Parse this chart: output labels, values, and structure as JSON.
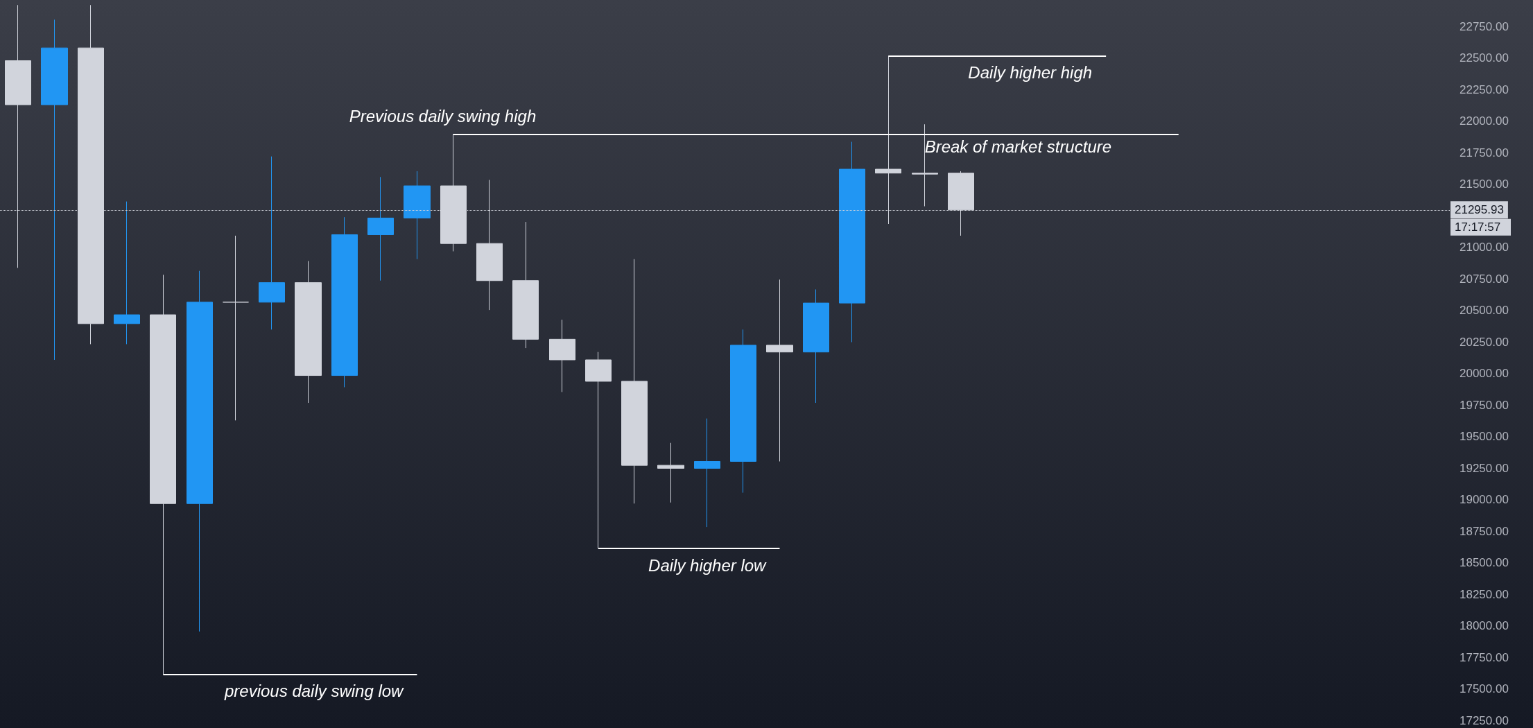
{
  "chart_data": {
    "type": "candlestick",
    "categories": [
      null,
      null,
      null,
      null,
      null,
      null,
      null,
      null,
      null,
      null,
      null,
      null,
      null,
      null,
      null,
      null,
      null,
      null,
      null,
      null,
      null,
      null,
      null,
      null,
      null,
      null,
      null,
      null,
      null,
      null,
      null,
      null,
      null,
      null,
      null,
      null,
      null,
      null,
      null,
      null
    ],
    "ohlc": [
      [
        22479,
        22920,
        20837,
        22130
      ],
      [
        22130,
        22804,
        20108,
        22580
      ],
      [
        22580,
        22920,
        20232,
        20395
      ],
      [
        20395,
        21363,
        20232,
        20465
      ],
      [
        20465,
        20782,
        17614,
        18969
      ],
      [
        18969,
        20813,
        17955,
        20565
      ],
      [
        20565,
        21092,
        19628,
        20565
      ],
      [
        20565,
        21720,
        20348,
        20720
      ],
      [
        20720,
        20891,
        19767,
        19984
      ],
      [
        19984,
        21239,
        19891,
        21100
      ],
      [
        21100,
        21557,
        20736,
        21232
      ],
      [
        21232,
        21603,
        20906,
        21487
      ],
      [
        21487,
        21898,
        20968,
        21030
      ],
      [
        21030,
        21534,
        20503,
        20736
      ],
      [
        20736,
        21201,
        20201,
        20271
      ],
      [
        20271,
        20426,
        19853,
        20108
      ],
      [
        20108,
        20170,
        18613,
        19938
      ],
      [
        19938,
        20906,
        18969,
        19272
      ],
      [
        19272,
        19450,
        18977,
        19248
      ],
      [
        19248,
        19643,
        18783,
        19303
      ],
      [
        19303,
        20348,
        19055,
        20224
      ],
      [
        20224,
        20744,
        19303,
        20170
      ],
      [
        20170,
        20666,
        19767,
        20558
      ],
      [
        20558,
        21836,
        20248,
        21619
      ],
      [
        21619,
        22518,
        21185,
        21588
      ],
      [
        21588,
        21975,
        21325,
        21580
      ],
      [
        21588,
        21603,
        21092,
        21295.93
      ],
      null,
      null,
      null,
      null,
      null,
      null,
      null,
      null,
      null,
      null,
      null,
      null,
      null
    ],
    "colors": [
      "#d1d4dc",
      "#2196f3",
      "#d1d4dc",
      "#2196f3",
      "#d1d4dc",
      "#2196f3",
      "#d1d4dc",
      "#2196f3",
      "#d1d4dc",
      "#2196f3",
      "#2196f3",
      "#2196f3",
      "#d1d4dc",
      "#d1d4dc",
      "#d1d4dc",
      "#d1d4dc",
      "#d1d4dc",
      "#d1d4dc",
      "#d1d4dc",
      "#2196f3",
      "#2196f3",
      "#d1d4dc",
      "#2196f3",
      "#2196f3",
      "#d1d4dc",
      "#d1d4dc",
      "#d1d4dc",
      null,
      null,
      null,
      null,
      null,
      null,
      null,
      null,
      null,
      null,
      null,
      null,
      null
    ],
    "ylim": [
      17190,
      22960
    ],
    "yticks": [
      {
        "value": 17250,
        "label": "17250.00"
      },
      {
        "value": 17500,
        "label": "17500.00"
      },
      {
        "value": 17750,
        "label": "17750.00"
      },
      {
        "value": 18000,
        "label": "18000.00"
      },
      {
        "value": 18250,
        "label": "18250.00"
      },
      {
        "value": 18500,
        "label": "18500.00"
      },
      {
        "value": 18750,
        "label": "18750.00"
      },
      {
        "value": 19000,
        "label": "19000.00"
      },
      {
        "value": 19250,
        "label": "19250.00"
      },
      {
        "value": 19500,
        "label": "19500.00"
      },
      {
        "value": 19750,
        "label": "19750.00"
      },
      {
        "value": 20000,
        "label": "20000.00"
      },
      {
        "value": 20250,
        "label": "20250.00"
      },
      {
        "value": 20500,
        "label": "20500.00"
      },
      {
        "value": 20750,
        "label": "20750.00"
      },
      {
        "value": 21000,
        "label": "21000.00"
      },
      {
        "value": 21500,
        "label": "21500.00"
      },
      {
        "value": 21750,
        "label": "21750.00"
      },
      {
        "value": 22000,
        "label": "22000.00"
      },
      {
        "value": 22250,
        "label": "22250.00"
      },
      {
        "value": 22500,
        "label": "22500.00"
      },
      {
        "value": 22750,
        "label": "22750.00"
      }
    ],
    "tick_labels": "y",
    "ref_lines": [
      {
        "axis": "y",
        "value": 21898,
        "label": "Previous daily swing high",
        "color": "#ffffff",
        "line_style": "solid"
      },
      {
        "axis": "y",
        "value": 22518,
        "label": "Daily higher high",
        "color": "#ffffff",
        "line_style": "solid"
      },
      {
        "axis": "y",
        "value": 18613,
        "label": "Daily higher low",
        "color": "#ffffff",
        "line_style": "solid"
      },
      {
        "axis": "y",
        "value": 17614,
        "label": "previous daily swing low",
        "color": "#ffffff",
        "line_style": "solid"
      },
      {
        "axis": "y",
        "value": 21295.93,
        "label": "21295.93",
        "color": "#d1d4dc",
        "line_style": "dotted"
      }
    ],
    "annotations": [
      {
        "text": "Break of market structure",
        "y": 21898
      },
      "17:17:57"
    ]
  }
}
